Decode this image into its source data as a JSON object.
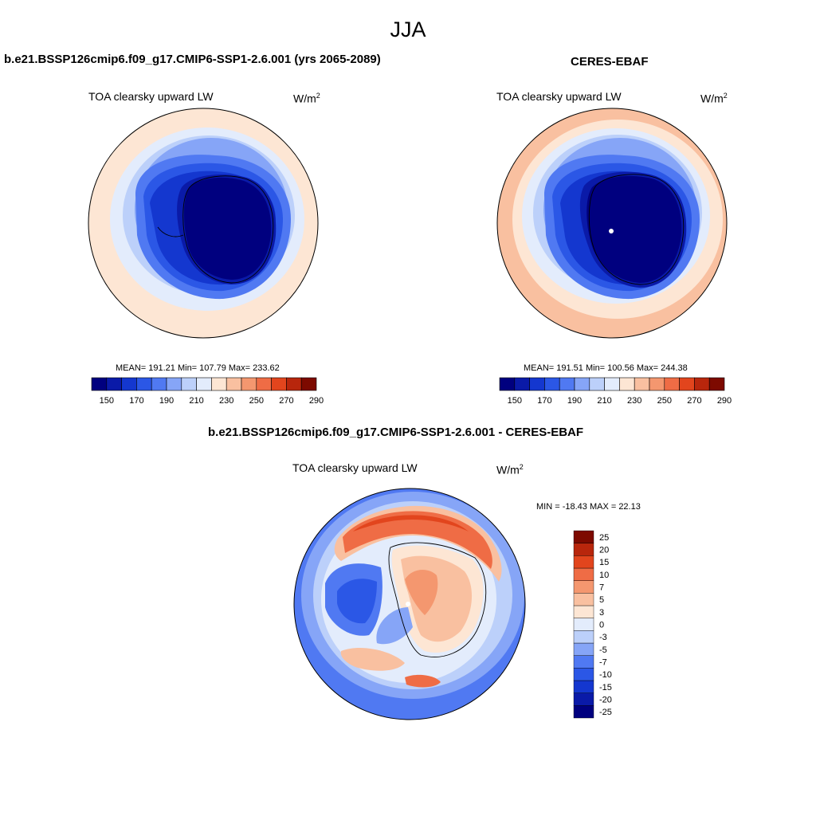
{
  "figure": {
    "title": "JJA"
  },
  "panels": {
    "model": {
      "title": "b.e21.BSSP126cmip6.f09_g17.CMIP6-SSP1-2.6.001 (yrs 2065-2089)",
      "variable": "TOA clearsky upward LW",
      "units_base": "W/m",
      "units_exp": "2",
      "stats": "MEAN= 191.21  Min= 107.79  Max= 233.62"
    },
    "obs": {
      "title": "CERES-EBAF",
      "variable": "TOA clearsky upward LW",
      "units_base": "W/m",
      "units_exp": "2",
      "stats": "MEAN= 191.51  Min= 100.56  Max= 244.38"
    },
    "diff": {
      "title": "b.e21.BSSP126cmip6.f09_g17.CMIP6-SSP1-2.6.001 - CERES-EBAF",
      "variable": "TOA clearsky upward LW",
      "units_base": "W/m",
      "units_exp": "2",
      "stats": "MIN = -18.43 MAX =  22.13"
    }
  },
  "colorbars": {
    "abs": {
      "colors": [
        "#00007f",
        "#0a1aa8",
        "#1437cf",
        "#2b57e6",
        "#5079f2",
        "#86a5f7",
        "#bcd0fa",
        "#e3ecfc",
        "#fde6d4",
        "#f9c0a0",
        "#f4976f",
        "#ef6c45",
        "#e2451d",
        "#b8260c",
        "#7d0a00"
      ],
      "tick_labels": [
        "150",
        "170",
        "190",
        "210",
        "230",
        "250",
        "270",
        "290"
      ]
    },
    "diff": {
      "colors": [
        "#00007f",
        "#0a1aa8",
        "#1437cf",
        "#2b57e6",
        "#5079f2",
        "#86a5f7",
        "#bcd0fa",
        "#e3ecfc",
        "#fde6d4",
        "#f9c0a0",
        "#f4976f",
        "#ef6c45",
        "#e2451d",
        "#b8260c",
        "#7d0a00"
      ],
      "tick_labels": [
        "-25",
        "-20",
        "-15",
        "-10",
        "-7",
        "-5",
        "-3",
        "0",
        "3",
        "5",
        "7",
        "10",
        "15",
        "20",
        "25"
      ]
    }
  }
}
